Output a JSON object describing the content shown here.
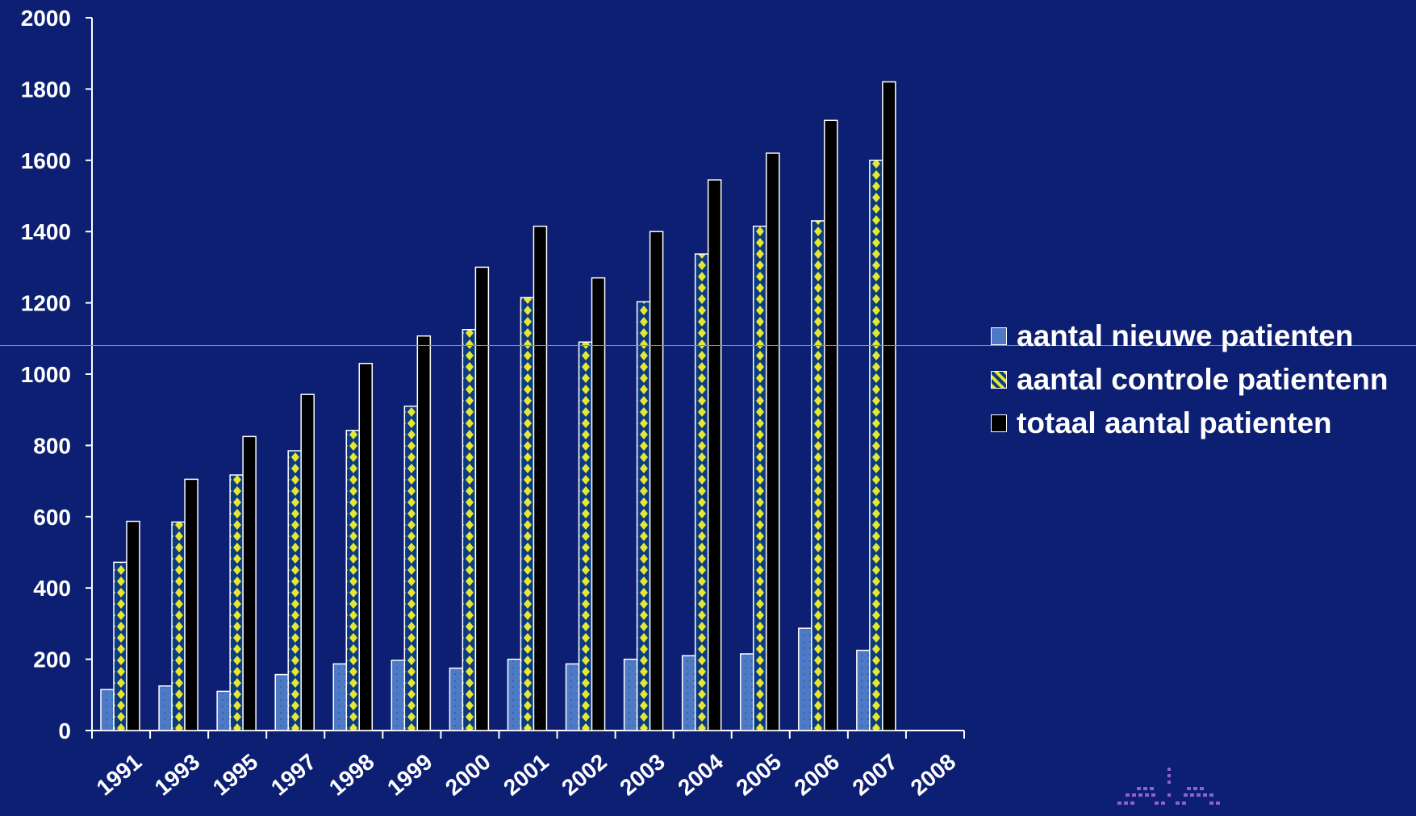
{
  "chart_data": {
    "type": "bar",
    "categories": [
      "1991",
      "1993",
      "1995",
      "1997",
      "1998",
      "1999",
      "2000",
      "2001",
      "2002",
      "2003",
      "2004",
      "2005",
      "2006",
      "2007",
      "2008"
    ],
    "series": [
      {
        "name": "aantal nieuwe patienten",
        "values": [
          115,
          125,
          110,
          157,
          187,
          197,
          175,
          200,
          187,
          200,
          210,
          215,
          287,
          225,
          null
        ]
      },
      {
        "name": "aantal controle patientenn",
        "values": [
          472,
          585,
          717,
          785,
          842,
          910,
          1125,
          1215,
          1090,
          1203,
          1337,
          1415,
          1430,
          1600,
          null
        ]
      },
      {
        "name": "totaal aantal patienten",
        "values": [
          587,
          705,
          825,
          943,
          1030,
          1107,
          1300,
          1415,
          1270,
          1400,
          1545,
          1620,
          1712,
          1820,
          null
        ]
      }
    ],
    "yticks": [
      0,
      200,
      400,
      600,
      800,
      1000,
      1200,
      1400,
      1600,
      1800,
      2000
    ],
    "ylim": [
      0,
      2000
    ],
    "legend_position": "right",
    "colors": {
      "nieuwe": "#4e79c4",
      "controle_a": "#e6e635",
      "controle_b": "#0d3b80",
      "totaal": "#000000",
      "background": "#0d1f72"
    }
  },
  "legend": [
    {
      "label": "aantal nieuwe patienten",
      "icon": "blue-dotted-swatch"
    },
    {
      "label": "aantal controle patientenn",
      "icon": "yellow-diamond-swatch"
    },
    {
      "label": "totaal aantal patienten",
      "icon": "black-swatch"
    }
  ]
}
